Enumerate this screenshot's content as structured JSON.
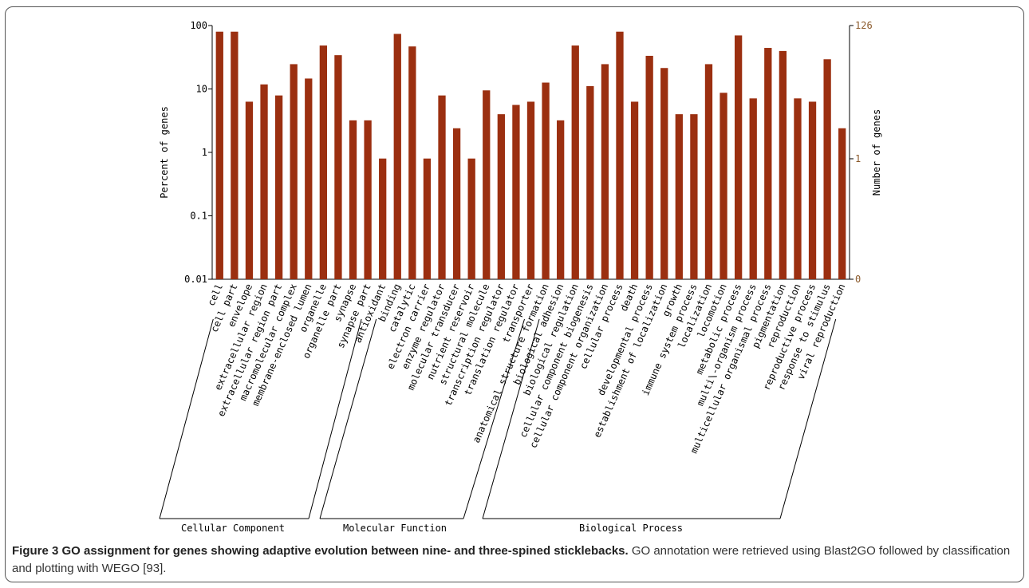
{
  "chart_data": {
    "type": "bar",
    "categories": [
      "cell",
      "cell part",
      "envelope",
      "extracellular region",
      "extracellular region part",
      "macromolecular complex",
      "membrane-enclosed lumen",
      "organelle",
      "organelle part",
      "synapse",
      "synapse part",
      "antioxidant",
      "binding",
      "catalytic",
      "electron carrier",
      "enzyme regulator",
      "molecular transducer",
      "nutrient reservoir",
      "structural molecule",
      "transcription regulator",
      "translation regulator",
      "transporter",
      "anatomical structure formation",
      "biological adhesion",
      "biological regulation",
      "cellular component biogenesis",
      "cellular component organization",
      "cellular process",
      "death",
      "developmental process",
      "establishment of localization",
      "growth",
      "immune system process",
      "localization",
      "locomotion",
      "metabolic process",
      "multi\\-organism process",
      "multicellular organismal process",
      "pigmentation",
      "reproduction",
      "reproductive process",
      "response to stimulus",
      "viral reproduction"
    ],
    "values": [
      80,
      80,
      6.3,
      11.8,
      7.9,
      24.6,
      14.6,
      48.4,
      34.1,
      3.2,
      3.2,
      0.8,
      73.8,
      46.8,
      0.8,
      7.9,
      2.4,
      0.8,
      9.5,
      4.0,
      5.6,
      6.3,
      12.6,
      3.2,
      48.4,
      11.1,
      24.6,
      80,
      6.3,
      33.3,
      21.4,
      4.0,
      4.0,
      24.6,
      8.7,
      69.8,
      7.1,
      44.4,
      39.7,
      7.1,
      6.3,
      29.4,
      2.4
    ],
    "yscale": "log",
    "ylim": [
      0.01,
      100
    ],
    "y_ticks": [
      "0.01",
      "0.1",
      "1",
      "10",
      "100"
    ],
    "ylabel": "Percent of genes",
    "y2label": "Number of genes",
    "y2_ticks": [
      "0",
      "1",
      "126"
    ],
    "groups": [
      {
        "name": "Cellular Component",
        "start": 0,
        "end": 10
      },
      {
        "name": "Molecular Function",
        "start": 11,
        "end": 21
      },
      {
        "name": "Biological Process",
        "start": 22,
        "end": 42
      }
    ],
    "bar_color": "#9b2f10",
    "axis_color": "#000000",
    "y2_color": "#8b5a2b",
    "grid": false
  },
  "caption": {
    "title": "Figure 3 GO assignment for genes showing adaptive evolution between nine- and three-spined sticklebacks.",
    "text": " GO annotation were retrieved using Blast2GO followed by classification and plotting with WEGO [93]."
  }
}
